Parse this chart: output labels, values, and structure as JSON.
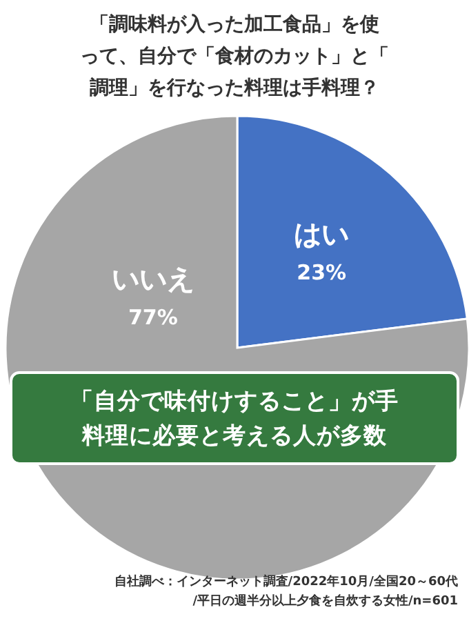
{
  "chart_data": {
    "type": "pie",
    "title": "「調味料が入った加工食品」を使って、自分で「食材のカット」と「調理」を行なった料理は手料理？",
    "categories": [
      "はい",
      "いいえ"
    ],
    "values": [
      23,
      77
    ],
    "colors": [
      "#4472c4",
      "#a6a6a6"
    ],
    "value_labels": [
      "23%",
      "77%"
    ],
    "annotations": [
      "「自分で味付けすること」が手料理に必要と考える人が多数",
      "自社調べ：インターネット調査/2022年10月/全国20～60代\n/平日の週半分以上夕食を自炊する女性/n=601"
    ]
  }
}
